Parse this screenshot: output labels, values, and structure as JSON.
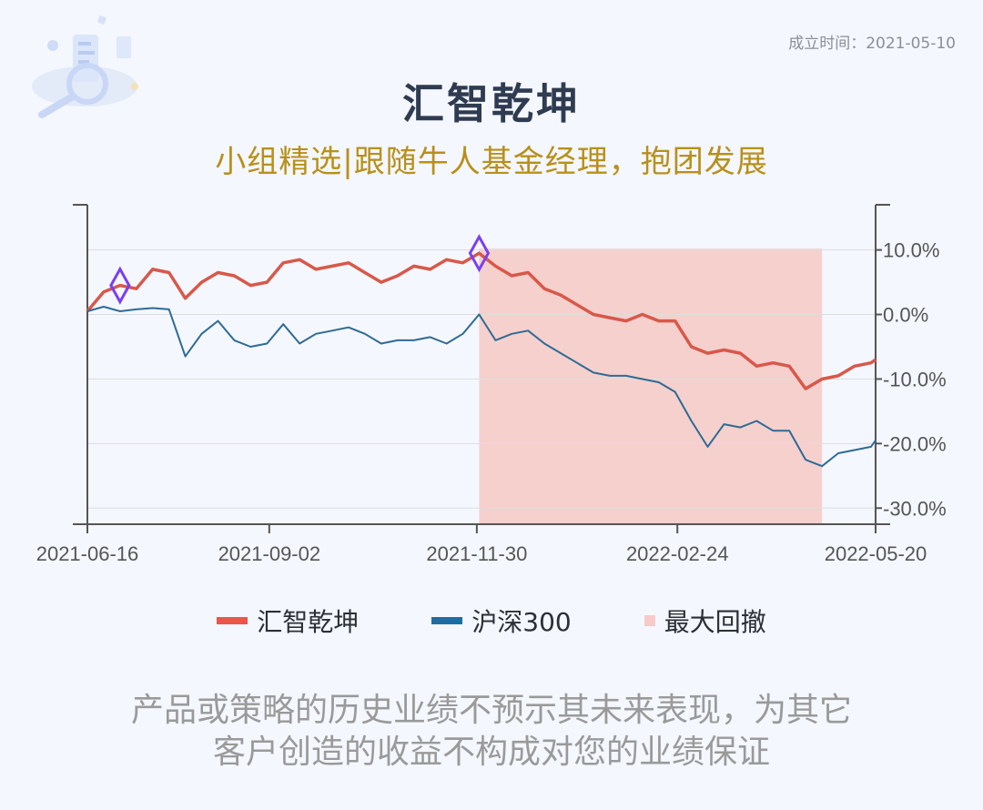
{
  "header": {
    "founded": "成立时间：2021-05-10",
    "title": "汇智乾坤",
    "subtitle": "小组精选|跟随牛人基金经理，抱团发展"
  },
  "colors": {
    "fund": "#d8584a",
    "index": "#2e6b95",
    "drawdown": "#f5d0cd",
    "marker": "#7a3ff2",
    "axis": "#555555",
    "grid": "#dddddd"
  },
  "legend": {
    "items": [
      {
        "label": "汇智乾坤",
        "color": "#e8574a",
        "icon": "line-swatch"
      },
      {
        "label": "沪深300",
        "color": "#1d6fa0",
        "icon": "line-swatch"
      },
      {
        "label": "最大回撤",
        "color": "#f7c9c9",
        "icon": "square-swatch"
      }
    ]
  },
  "chart_data": {
    "type": "line",
    "x_ticks": [
      "2021-06-16",
      "2021-09-02",
      "2021-11-30",
      "2022-02-24",
      "2022-05-20"
    ],
    "y_ticks": [
      "10.0%",
      "0.0%",
      "-10.0%",
      "-20.0%",
      "-30.0%"
    ],
    "ylim": [
      -32.5,
      17
    ],
    "y_unit": "%",
    "grid": true,
    "x_domain": [
      "2021-06-16",
      "2022-05-20"
    ],
    "series": [
      {
        "name": "汇智乾坤",
        "x": [
          "2021-06-16",
          "2021-06-23",
          "2021-06-30",
          "2021-07-07",
          "2021-07-14",
          "2021-07-21",
          "2021-07-28",
          "2021-08-04",
          "2021-08-11",
          "2021-08-18",
          "2021-08-25",
          "2021-09-01",
          "2021-09-08",
          "2021-09-15",
          "2021-09-22",
          "2021-09-29",
          "2021-10-06",
          "2021-10-13",
          "2021-10-20",
          "2021-10-27",
          "2021-11-03",
          "2021-11-10",
          "2021-11-17",
          "2021-11-24",
          "2021-12-01",
          "2021-12-08",
          "2021-12-15",
          "2021-12-22",
          "2021-12-29",
          "2022-01-05",
          "2022-01-12",
          "2022-01-19",
          "2022-01-26",
          "2022-02-02",
          "2022-02-09",
          "2022-02-16",
          "2022-02-23",
          "2022-03-02",
          "2022-03-09",
          "2022-03-16",
          "2022-03-23",
          "2022-03-30",
          "2022-04-06",
          "2022-04-13",
          "2022-04-20",
          "2022-04-27",
          "2022-05-04",
          "2022-05-11",
          "2022-05-18",
          "2022-05-20"
        ],
        "values": [
          0.5,
          3.5,
          4.5,
          4,
          7,
          6.5,
          2.5,
          5,
          6.5,
          6,
          4.5,
          5,
          8,
          8.5,
          7,
          7.5,
          8,
          6.5,
          5,
          6,
          7.5,
          7,
          8.5,
          8,
          9.5,
          7.5,
          6,
          6.5,
          4,
          3,
          1.5,
          0,
          -0.5,
          -1,
          0,
          -1,
          -1,
          -5,
          -6,
          -5.5,
          -6,
          -8,
          -7.5,
          -8,
          -11.5,
          -10,
          -9.5,
          -8,
          -7.5,
          -7
        ]
      },
      {
        "name": "沪深300",
        "x": [
          "2021-06-16",
          "2021-06-23",
          "2021-06-30",
          "2021-07-07",
          "2021-07-14",
          "2021-07-21",
          "2021-07-28",
          "2021-08-04",
          "2021-08-11",
          "2021-08-18",
          "2021-08-25",
          "2021-09-01",
          "2021-09-08",
          "2021-09-15",
          "2021-09-22",
          "2021-09-29",
          "2021-10-06",
          "2021-10-13",
          "2021-10-20",
          "2021-10-27",
          "2021-11-03",
          "2021-11-10",
          "2021-11-17",
          "2021-11-24",
          "2021-12-01",
          "2021-12-08",
          "2021-12-15",
          "2021-12-22",
          "2021-12-29",
          "2022-01-05",
          "2022-01-12",
          "2022-01-19",
          "2022-01-26",
          "2022-02-02",
          "2022-02-09",
          "2022-02-16",
          "2022-02-23",
          "2022-03-02",
          "2022-03-09",
          "2022-03-16",
          "2022-03-23",
          "2022-03-30",
          "2022-04-06",
          "2022-04-13",
          "2022-04-20",
          "2022-04-27",
          "2022-05-04",
          "2022-05-11",
          "2022-05-18",
          "2022-05-20"
        ],
        "values": [
          0.5,
          1.2,
          0.5,
          0.8,
          1,
          0.8,
          -6.5,
          -3,
          -1,
          -4,
          -5,
          -4.5,
          -1.5,
          -4.5,
          -3,
          -2.5,
          -2,
          -3,
          -4.5,
          -4,
          -4,
          -3.5,
          -4.5,
          -3,
          0,
          -4,
          -3,
          -2.5,
          -4.5,
          -6,
          -7.5,
          -9,
          -9.5,
          -9.5,
          -10,
          -10.5,
          -12,
          -16.5,
          -20.5,
          -17,
          -17.5,
          -16.5,
          -18,
          -18,
          -22.5,
          -23.5,
          -21.5,
          -21,
          -20.5,
          -19.5
        ]
      }
    ],
    "drawdown": {
      "start": "2021-12-01",
      "end": "2022-04-27"
    },
    "markers": [
      "2021-06-30",
      "2021-12-01"
    ]
  },
  "footer": {
    "line1": "产品或策略的历史业绩不预示其未来表现，为其它",
    "line2": "客户创造的收益不构成对您的业绩保证"
  }
}
